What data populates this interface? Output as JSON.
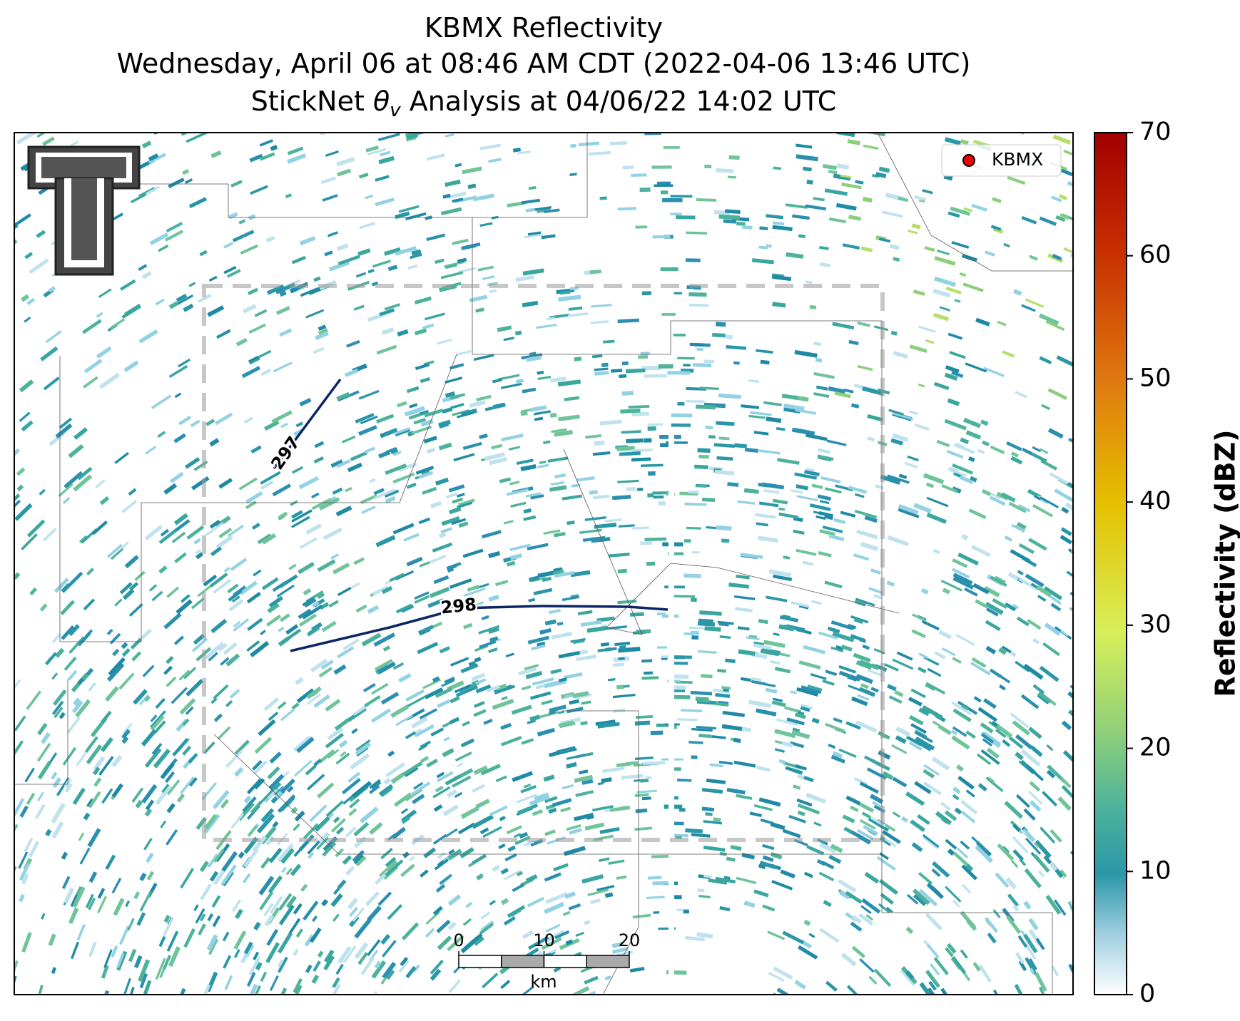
{
  "header": {
    "title": "KBMX Reflectivity",
    "subtitle": "Wednesday, April 06 at 08:46 AM CDT (2022-04-06 13:46 UTC)",
    "analysis": {
      "prefix": "StickNet",
      "symbol": "θ",
      "subscript": "v",
      "suffix": "Analysis at 04/06/22 14:02 UTC"
    }
  },
  "legend": {
    "label": "KBMX"
  },
  "contours": [
    {
      "value": 297
    },
    {
      "value": 298
    }
  ],
  "scale_bar": {
    "ticks": [
      0,
      10,
      20
    ],
    "unit": "km"
  },
  "colorbar": {
    "label": "Reflectivity (dBZ)",
    "lim": [
      0,
      70
    ],
    "ticks": [
      0,
      10,
      20,
      30,
      40,
      50,
      60,
      70
    ]
  }
}
